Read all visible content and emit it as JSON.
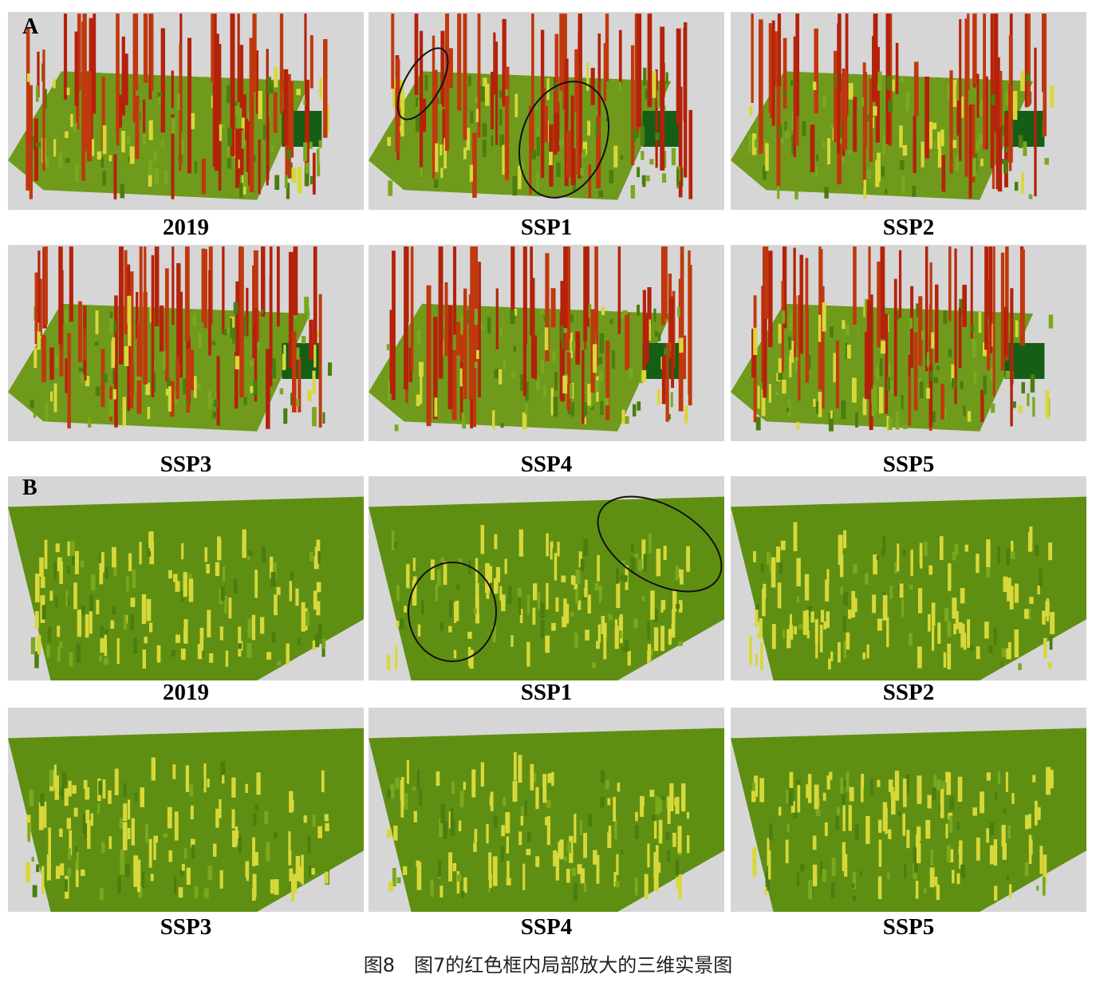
{
  "panels": [
    {
      "label": "A",
      "images": [
        {
          "caption": "2019"
        },
        {
          "caption": "SSP1"
        },
        {
          "caption": "SSP2"
        },
        {
          "caption": "SSP3"
        },
        {
          "caption": "SSP4"
        },
        {
          "caption": "SSP5"
        }
      ]
    },
    {
      "label": "B",
      "images": [
        {
          "caption": "2019"
        },
        {
          "caption": "SSP1"
        },
        {
          "caption": "SSP2"
        },
        {
          "caption": "SSP3"
        },
        {
          "caption": "SSP4"
        },
        {
          "caption": "SSP5"
        }
      ]
    }
  ],
  "caption": "图8　图7的红色框内局部放大的三维实景图"
}
